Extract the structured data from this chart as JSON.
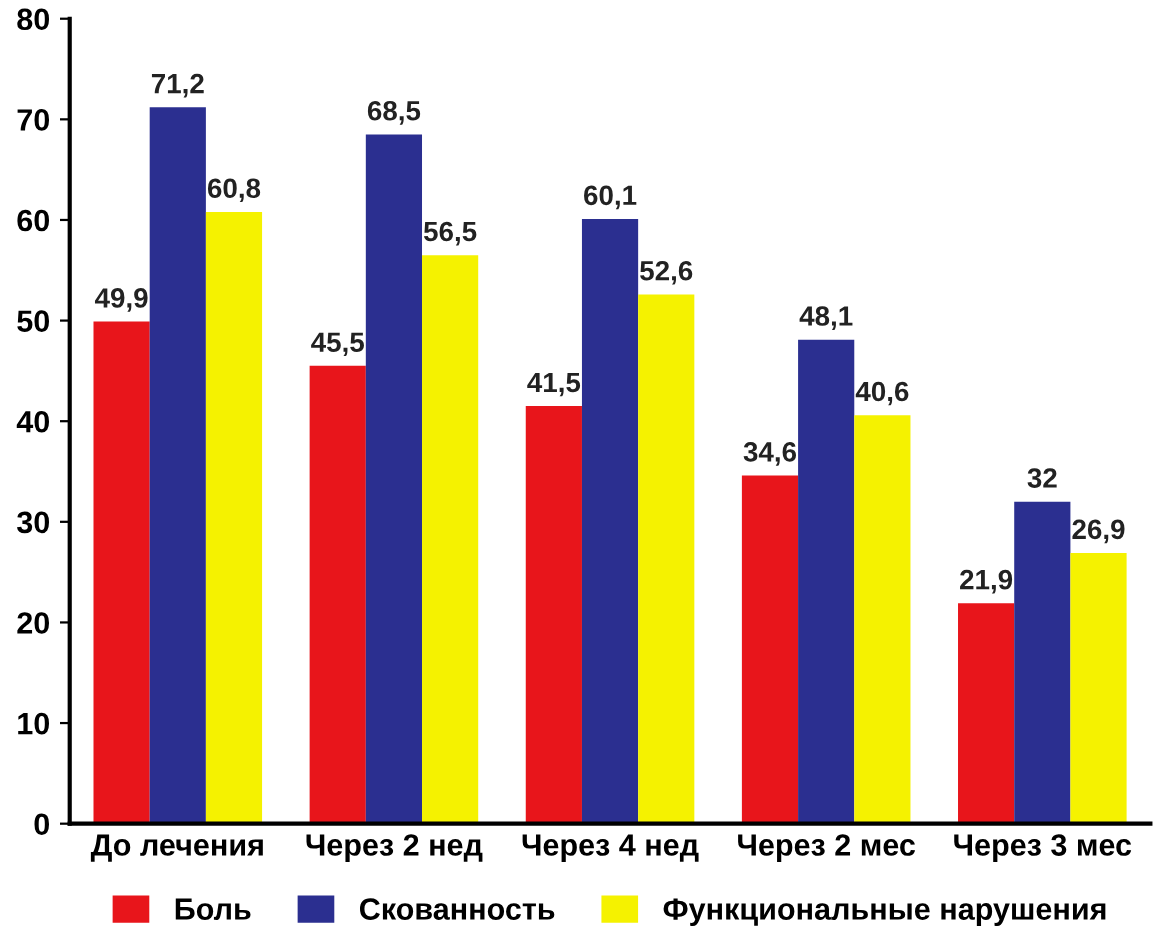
{
  "chart_data": {
    "type": "bar",
    "categories": [
      "До лечения",
      "Через 2 нед",
      "Через 4 нед",
      "Через 2 мес",
      "Через 3 мес"
    ],
    "series": [
      {
        "name": "Боль",
        "color": "#e8151b",
        "values": [
          49.9,
          45.5,
          41.5,
          34.6,
          21.9
        ],
        "value_labels": [
          "49,9",
          "45,5",
          "41,5",
          "34,6",
          "21,9"
        ]
      },
      {
        "name": "Скованность",
        "color": "#2b2f90",
        "values": [
          71.2,
          68.5,
          60.1,
          48.1,
          32
        ],
        "value_labels": [
          "71,2",
          "68,5",
          "60,1",
          "48,1",
          "32"
        ]
      },
      {
        "name": "Функциональные нарушения",
        "color": "#f5f200",
        "values": [
          60.8,
          56.5,
          52.6,
          40.6,
          26.9
        ],
        "value_labels": [
          "60,8",
          "56,5",
          "52,6",
          "40,6",
          "26,9"
        ]
      }
    ],
    "ylim": [
      0,
      80
    ],
    "yticks": [
      0,
      10,
      20,
      30,
      40,
      50,
      60,
      70,
      80
    ],
    "grid": false,
    "legend": "bottom"
  }
}
